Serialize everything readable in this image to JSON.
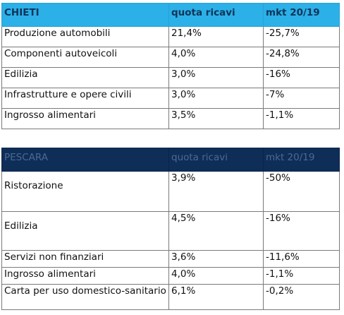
{
  "tables": [
    {
      "headers": [
        "CHIETI",
        "quota ricavi",
        "mkt 20/19"
      ],
      "rows": [
        [
          "Produzione automobili",
          "21,4%",
          "-25,7%"
        ],
        [
          "Componenti autoveicoli",
          "4,0%",
          "-24,8%"
        ],
        [
          "Edilizia",
          "3,0%",
          "-16%"
        ],
        [
          "Infrastrutture e opere civili",
          "3,0%",
          "-7%"
        ],
        [
          "Ingrosso alimentari",
          "3,5%",
          "-1,1%"
        ]
      ]
    },
    {
      "headers": [
        "PESCARA",
        "quota ricavi",
        "mkt 20/19"
      ],
      "rows": [
        [
          "Ristorazione",
          "3,9%",
          "-50%"
        ],
        [
          "Edilizia",
          "4,5%",
          "-16%"
        ],
        [
          "Servizi non finanziari",
          "3,6%",
          "-11,6%"
        ],
        [
          "Ingrosso alimentari",
          "4,0%",
          "-1,1%"
        ],
        [
          "Carta per uso domestico-sanitario",
          "6,1%",
          "-0,2%"
        ]
      ]
    }
  ]
}
